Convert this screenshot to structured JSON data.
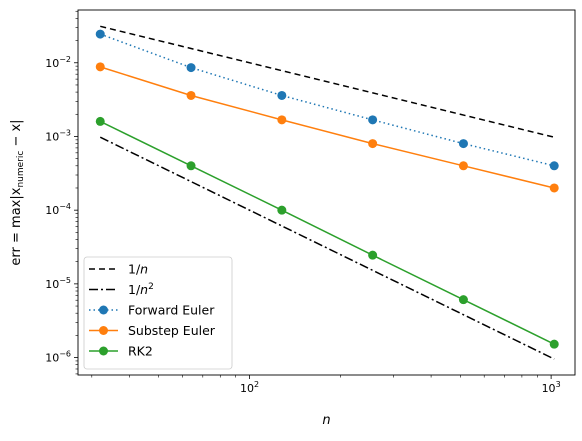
{
  "chart_data": {
    "type": "line",
    "xscale": "log",
    "yscale": "log",
    "xlabel_var": "n",
    "ylabel_parts": {
      "prefix": "err = max|x",
      "sub": "numeric",
      "suffix": " − x|"
    },
    "xlim": [
      27,
      1200
    ],
    "ylim": [
      5.8e-07,
      0.052
    ],
    "xticks": [
      {
        "value": 100,
        "base": "10",
        "exp": "2"
      },
      {
        "value": 1000,
        "base": "10",
        "exp": "3"
      }
    ],
    "yticks": [
      {
        "value": 1e-06,
        "base": "10",
        "exp": "−6"
      },
      {
        "value": 1e-05,
        "base": "10",
        "exp": "−5"
      },
      {
        "value": 0.0001,
        "base": "10",
        "exp": "−4"
      },
      {
        "value": 0.001,
        "base": "10",
        "exp": "−3"
      },
      {
        "value": 0.01,
        "base": "10",
        "exp": "−2"
      }
    ],
    "legend_position": "lower left",
    "series": [
      {
        "name": "1/n",
        "label_parts": [
          "1/",
          "n",
          ""
        ],
        "color": "#000000",
        "dash": "6,4",
        "marker": false,
        "x": [
          32,
          1024
        ],
        "y": [
          0.03125,
          0.0009766
        ]
      },
      {
        "name": "1/n²",
        "label_parts": [
          "1/",
          "n",
          "2"
        ],
        "color": "#000000",
        "dash": "9,3,2,3",
        "marker": false,
        "x": [
          32,
          1024
        ],
        "y": [
          0.000977,
          9.54e-07
        ]
      },
      {
        "name": "Forward Euler",
        "label_parts": [
          "Forward Euler"
        ],
        "color": "#1f77b4",
        "dash": "1.5,3",
        "marker": true,
        "x": [
          32,
          64,
          128,
          256,
          512,
          1024
        ],
        "y": [
          0.0245,
          0.0086,
          0.0036,
          0.00168,
          0.0008,
          0.0004
        ]
      },
      {
        "name": "Substep Euler",
        "label_parts": [
          "Substep Euler"
        ],
        "color": "#ff7f0e",
        "dash": "",
        "marker": true,
        "x": [
          32,
          64,
          128,
          256,
          512,
          1024
        ],
        "y": [
          0.0088,
          0.0036,
          0.00168,
          0.0008,
          0.0004,
          0.0002
        ]
      },
      {
        "name": "RK2",
        "label_parts": [
          "RK2"
        ],
        "color": "#2ca02c",
        "dash": "",
        "marker": true,
        "x": [
          32,
          64,
          128,
          256,
          512,
          1024
        ],
        "y": [
          0.0016,
          0.0004,
          0.0001,
          2.45e-05,
          6.1e-06,
          1.52e-06
        ]
      }
    ]
  }
}
